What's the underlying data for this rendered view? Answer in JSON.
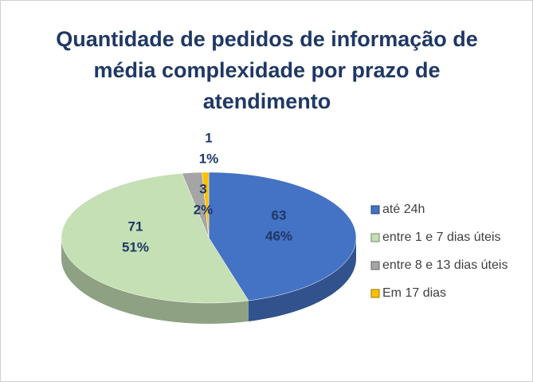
{
  "chart_data": {
    "type": "pie",
    "title": "Quantidade de pedidos de informação de média complexidade por prazo de atendimento",
    "categories": [
      "até 24h",
      "entre 1 e 7 dias úteis",
      "entre 8 e 13 dias úteis",
      "Em 17 dias"
    ],
    "values": [
      63,
      71,
      3,
      1
    ],
    "percent_labels": [
      "46%",
      "51%",
      "2%",
      "1%"
    ],
    "colors": [
      "#4472c4",
      "#c5e0b4",
      "#a5a5a5",
      "#ffc000"
    ],
    "legend": "right"
  }
}
